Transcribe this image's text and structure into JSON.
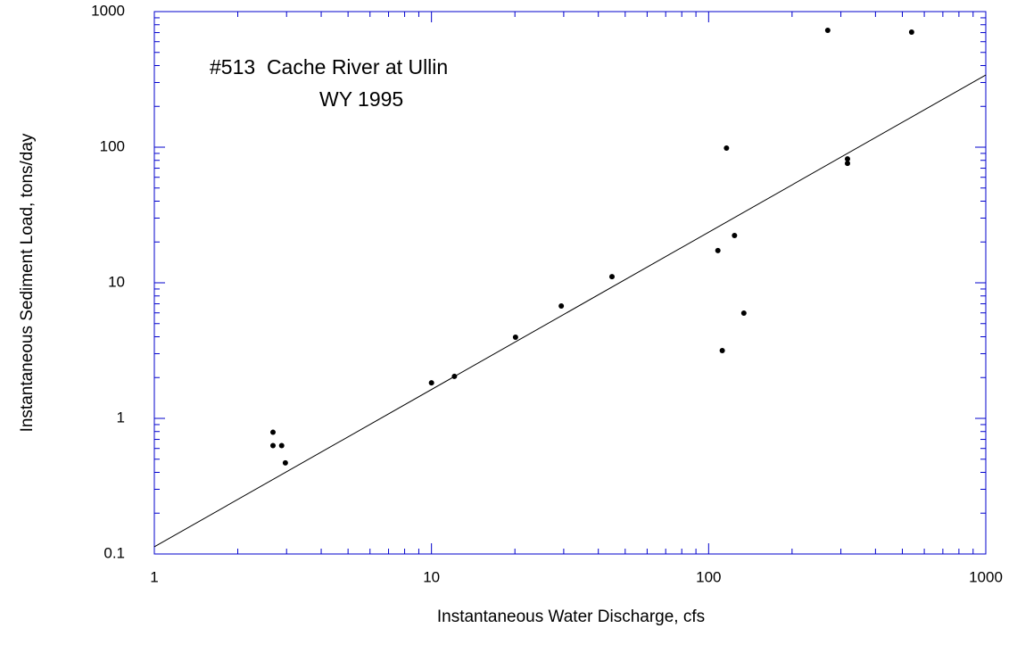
{
  "chart_data": {
    "type": "scatter",
    "annotations": [
      "#513  Cache River at Ullin",
      "WY 1995"
    ],
    "x_label": "Instantaneous Water Discharge, cfs",
    "y_label": "Instantaneous Sediment Load, tons/day",
    "log_x": true,
    "log_y": true,
    "xlim": [
      1,
      1000
    ],
    "ylim": [
      0.1,
      1000
    ],
    "xticks": [
      1,
      10,
      100,
      1000
    ],
    "yticks": [
      0.1,
      1,
      10,
      100,
      1000
    ],
    "axis_color": "#0000cc",
    "series": [
      {
        "color": "#000000",
        "x": [
          2.68,
          2.68,
          2.88,
          2.97,
          10.0,
          12.1,
          20.1,
          29.4,
          44.8,
          108,
          112,
          116,
          124,
          134,
          269,
          540,
          317,
          317
        ],
        "values": [
          0.79,
          0.63,
          0.63,
          0.47,
          1.83,
          2.04,
          3.97,
          6.74,
          11.1,
          17.3,
          3.16,
          98.5,
          22.3,
          5.97,
          728,
          706,
          82,
          76
        ]
      }
    ],
    "fit_line": {
      "color": "#000000",
      "x": [
        1,
        1000
      ],
      "values": [
        0.113,
        341
      ]
    }
  }
}
